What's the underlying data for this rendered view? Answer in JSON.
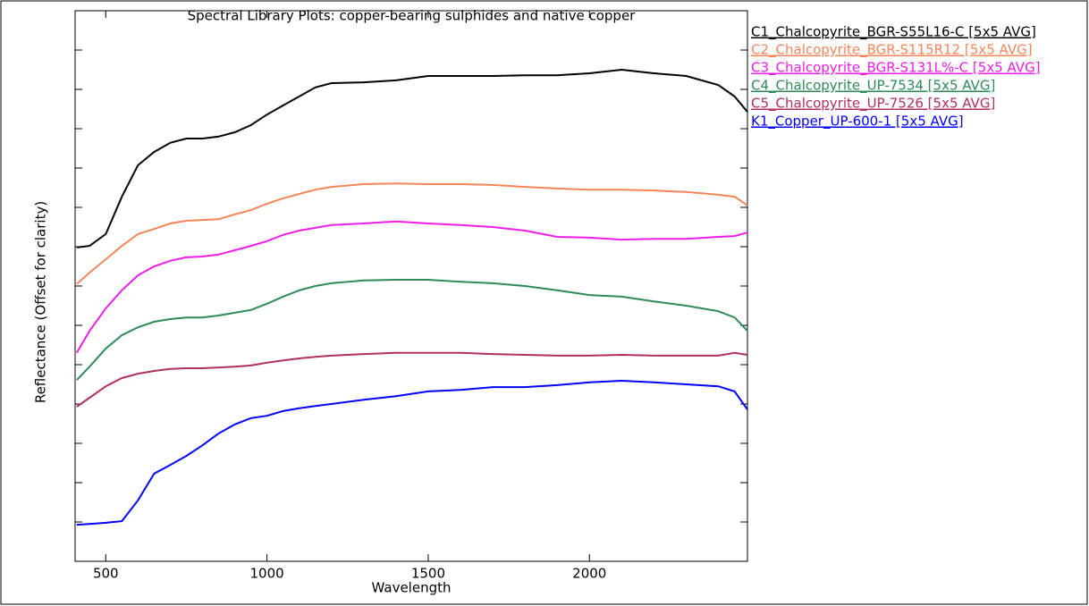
{
  "chart_data": {
    "type": "line",
    "title": "Spectral Library Plots: copper-bearing sulphides and native copper",
    "x_label": "Wavelength",
    "y_label": "Reflectance (Offset for clarity)",
    "x": [
      410,
      450,
      500,
      550,
      600,
      650,
      700,
      750,
      800,
      850,
      900,
      950,
      1000,
      1050,
      1100,
      1150,
      1200,
      1300,
      1400,
      1500,
      1600,
      1700,
      1800,
      1900,
      2000,
      2100,
      2200,
      2300,
      2400,
      2450,
      2490
    ],
    "xlim": [
      405,
      2490
    ],
    "xticks": [
      500,
      1000,
      1500,
      2000
    ],
    "ylim": [
      0,
      1.4
    ],
    "yticks": [
      0.1,
      0.2,
      0.3,
      0.4,
      0.5,
      0.6,
      0.7,
      0.8,
      0.9,
      1.0,
      1.1,
      1.2,
      1.3
    ],
    "series": [
      {
        "name": "C1_Chalcopyrite_BGR-S55L16-C [5x5 AVG]",
        "color": "#000000",
        "values": [
          0.798,
          0.802,
          0.832,
          0.927,
          1.007,
          1.041,
          1.064,
          1.075,
          1.075,
          1.08,
          1.091,
          1.109,
          1.136,
          1.159,
          1.182,
          1.205,
          1.216,
          1.218,
          1.223,
          1.234,
          1.234,
          1.234,
          1.236,
          1.236,
          1.241,
          1.25,
          1.241,
          1.234,
          1.211,
          1.182,
          1.143
        ]
      },
      {
        "name": "C2_Chalcopyrite_BGR-S115R12 [5x5 AVG]",
        "color": "#f4865a",
        "values": [
          0.705,
          0.734,
          0.768,
          0.802,
          0.832,
          0.845,
          0.859,
          0.866,
          0.868,
          0.87,
          0.882,
          0.893,
          0.909,
          0.923,
          0.934,
          0.945,
          0.952,
          0.959,
          0.961,
          0.959,
          0.959,
          0.957,
          0.952,
          0.948,
          0.945,
          0.945,
          0.943,
          0.939,
          0.932,
          0.927,
          0.905
        ]
      },
      {
        "name": "C3_Chalcopyrite_BGR-S131L%-C [5x5 AVG]",
        "color": "#ee1ee8",
        "values": [
          0.53,
          0.586,
          0.643,
          0.689,
          0.727,
          0.75,
          0.764,
          0.773,
          0.775,
          0.78,
          0.791,
          0.802,
          0.814,
          0.83,
          0.841,
          0.848,
          0.855,
          0.859,
          0.864,
          0.859,
          0.855,
          0.85,
          0.841,
          0.825,
          0.823,
          0.818,
          0.82,
          0.82,
          0.825,
          0.827,
          0.836
        ]
      },
      {
        "name": "C4_Chalcopyrite_UP-7534 [5x5 AVG]",
        "color": "#2e8b57",
        "values": [
          0.461,
          0.495,
          0.541,
          0.575,
          0.595,
          0.609,
          0.616,
          0.62,
          0.62,
          0.625,
          0.632,
          0.639,
          0.655,
          0.673,
          0.689,
          0.7,
          0.707,
          0.714,
          0.716,
          0.716,
          0.711,
          0.707,
          0.7,
          0.689,
          0.677,
          0.673,
          0.661,
          0.65,
          0.636,
          0.62,
          0.586
        ]
      },
      {
        "name": "C5_Chalcopyrite_UP-7526 [5x5 AVG]",
        "color": "#b03060",
        "values": [
          0.393,
          0.416,
          0.445,
          0.466,
          0.477,
          0.484,
          0.489,
          0.491,
          0.491,
          0.493,
          0.495,
          0.498,
          0.505,
          0.511,
          0.516,
          0.52,
          0.523,
          0.527,
          0.53,
          0.53,
          0.53,
          0.527,
          0.525,
          0.523,
          0.523,
          0.525,
          0.523,
          0.523,
          0.523,
          0.53,
          0.525
        ]
      },
      {
        "name": "K1_Copper_UP-600-1 [5x5 AVG]",
        "color": "#0000ff",
        "values": [
          0.093,
          0.095,
          0.098,
          0.102,
          0.155,
          0.223,
          0.245,
          0.268,
          0.295,
          0.325,
          0.348,
          0.364,
          0.37,
          0.382,
          0.389,
          0.395,
          0.4,
          0.411,
          0.42,
          0.432,
          0.436,
          0.443,
          0.443,
          0.448,
          0.455,
          0.459,
          0.455,
          0.45,
          0.445,
          0.432,
          0.386
        ]
      }
    ]
  }
}
